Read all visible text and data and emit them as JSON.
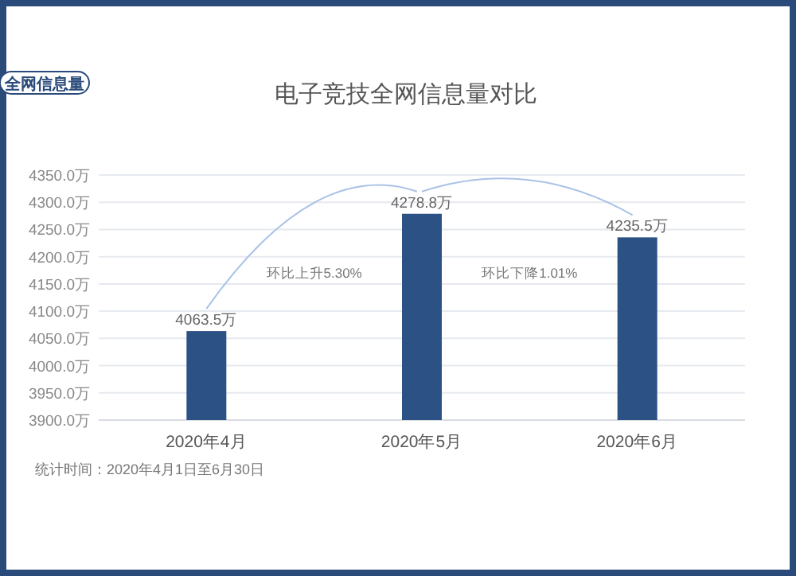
{
  "chart_data": {
    "type": "bar",
    "title": "电子竞技全网信息量对比",
    "categories": [
      "2020年4月",
      "2020年5月",
      "2020年6月"
    ],
    "series": [
      {
        "color": "#2c5185",
        "values": [
          4063.5,
          4278.8,
          4235.5
        ]
      }
    ],
    "value_labels": [
      "4063.5万",
      "4278.8万",
      "4235.5万"
    ],
    "ylim": [
      3900,
      4350
    ],
    "yticks": [
      {
        "value": 3900,
        "label": "3900.0万"
      },
      {
        "value": 3950,
        "label": "3950.0万"
      },
      {
        "value": 4000,
        "label": "4000.0万"
      },
      {
        "value": 4050,
        "label": "4050.0万"
      },
      {
        "value": 4100,
        "label": "4100.0万"
      },
      {
        "value": 4150,
        "label": "4150.0万"
      },
      {
        "value": 4200,
        "label": "4200.0万"
      },
      {
        "value": 4250,
        "label": "4250.0万"
      },
      {
        "value": 4300,
        "label": "4300.0万"
      },
      {
        "value": 4350,
        "label": "4350.0万"
      }
    ],
    "grid": "y",
    "annotations": [
      "全网信息量",
      "环比上升5.30%",
      "环比下降1.01%",
      "统计时间：2020年4月1日至6月30日"
    ]
  }
}
